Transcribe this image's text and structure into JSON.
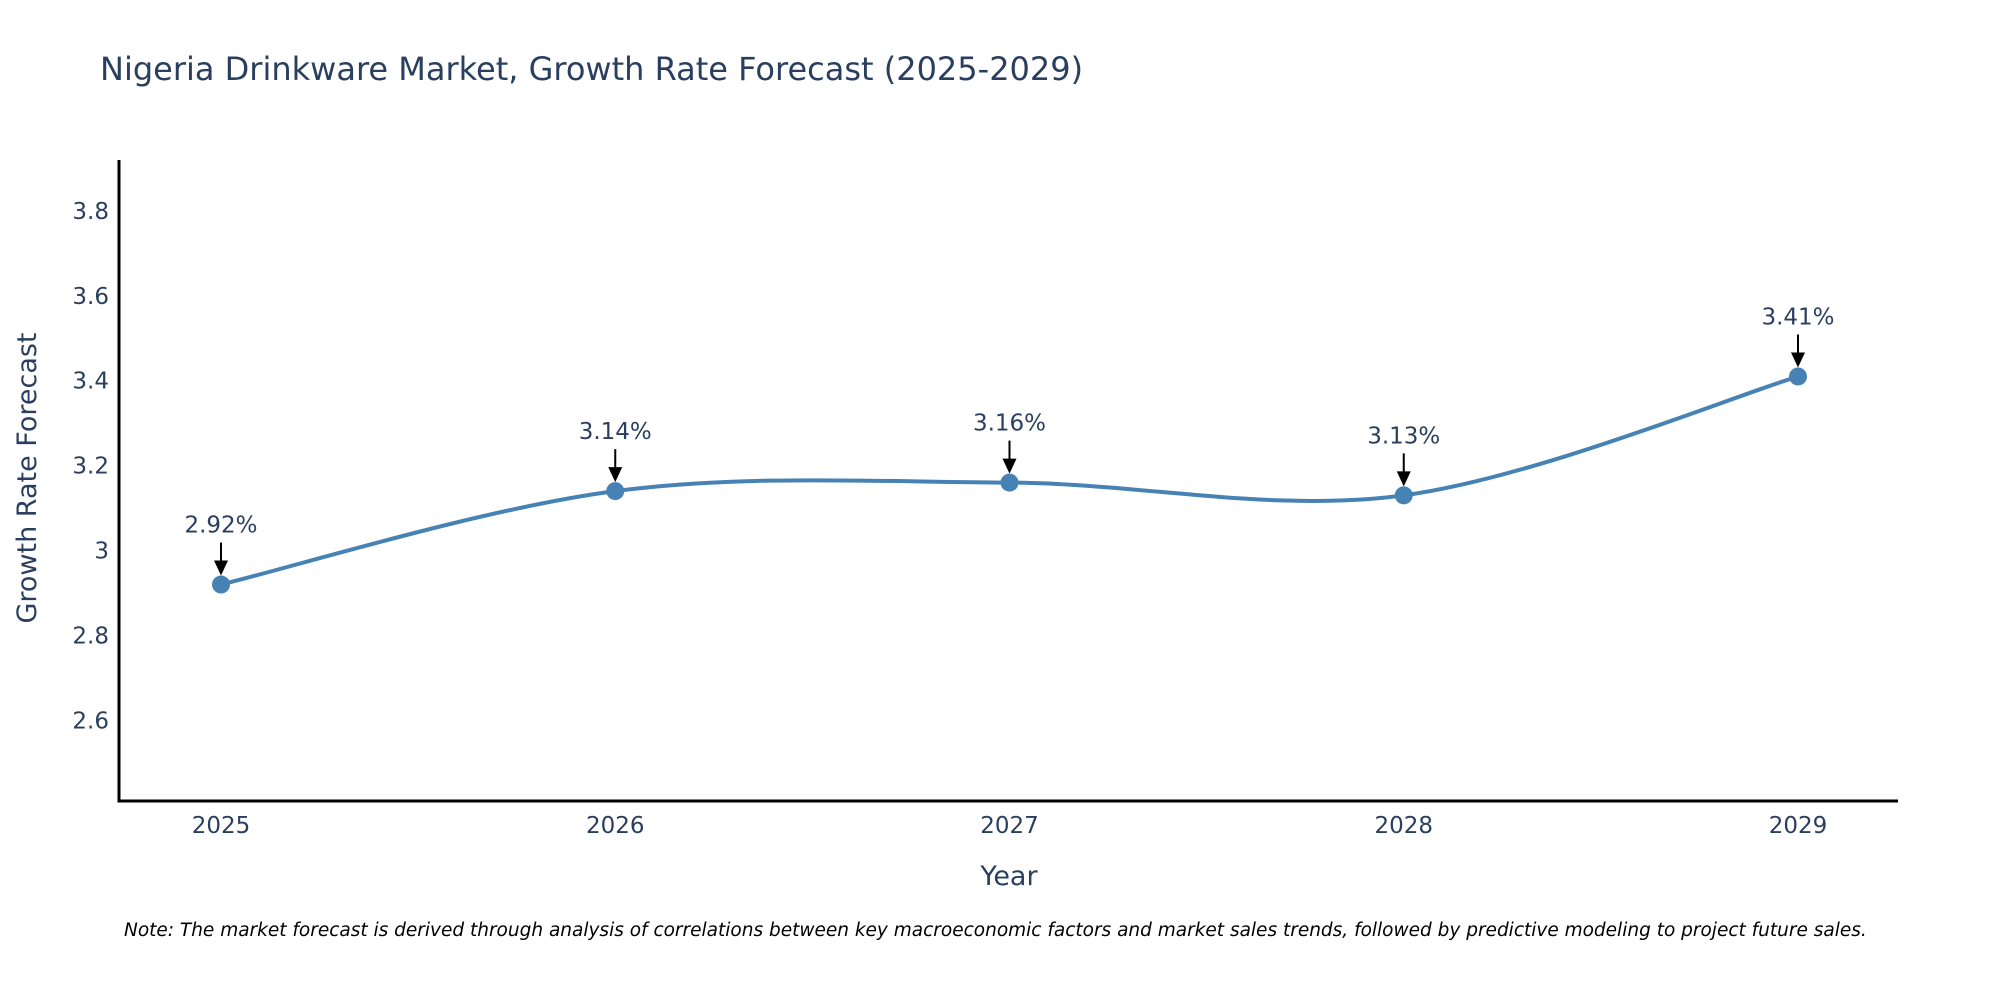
{
  "chart_data": {
    "type": "line",
    "title": "Nigeria Drinkware Market, Growth Rate Forecast (2025-2029)",
    "xlabel": "Year",
    "ylabel": "Growth Rate Forecast",
    "categories": [
      "2025",
      "2026",
      "2027",
      "2028",
      "2029"
    ],
    "values": [
      2.92,
      3.14,
      3.16,
      3.13,
      3.41
    ],
    "data_labels": [
      "2.92%",
      "3.14%",
      "3.16%",
      "3.13%",
      "3.41%"
    ],
    "y_ticks": [
      2.6,
      2.8,
      3,
      3.2,
      3.4,
      3.6,
      3.8
    ],
    "y_tick_labels": [
      "2.6",
      "2.8",
      "3",
      "3.2",
      "3.4",
      "3.6",
      "3.8"
    ],
    "ylim": [
      2.41,
      3.92
    ],
    "grid": false,
    "line_shape": "spline",
    "series_color": "#4682b4",
    "arrow_color": "#000000",
    "text_color": "#2a3f5f",
    "axis_color": "#000000"
  },
  "footnote": "Note: The market forecast is derived through analysis of correlations between key macroeconomic factors and market sales trends, followed by predictive modeling to project future sales."
}
